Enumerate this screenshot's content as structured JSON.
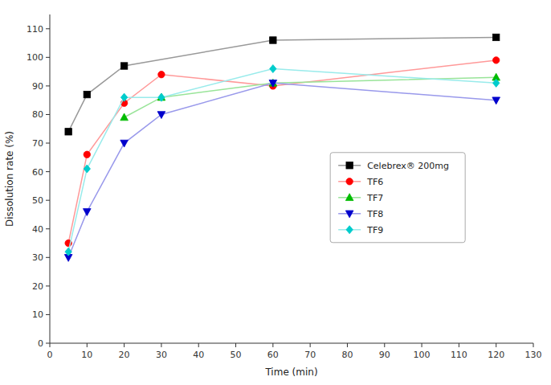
{
  "chart_data": {
    "type": "line",
    "xlabel": "Time (min)",
    "ylabel": "Dissolution rate (%)",
    "series": [
      {
        "name": "Celebrex® 200mg",
        "color": "#000000",
        "marker": "square",
        "x": [
          5,
          10,
          20,
          60,
          120
        ],
        "values": [
          74,
          87,
          97,
          106,
          107
        ]
      },
      {
        "name": "TF6",
        "color": "#ff0000",
        "marker": "circle",
        "x": [
          5,
          10,
          20,
          30,
          60,
          120
        ],
        "values": [
          35,
          66,
          84,
          94,
          90,
          99
        ]
      },
      {
        "name": "TF7",
        "color": "#00bb00",
        "marker": "triangle-up",
        "x": [
          20,
          30,
          60,
          120
        ],
        "values": [
          79,
          86,
          91,
          93
        ]
      },
      {
        "name": "TF8",
        "color": "#0000cc",
        "marker": "triangle-down",
        "x": [
          5,
          10,
          20,
          30,
          60,
          120
        ],
        "values": [
          30,
          46,
          70,
          80,
          91,
          85
        ]
      },
      {
        "name": "TF9",
        "color": "#00cccc",
        "marker": "diamond",
        "x": [
          5,
          10,
          20,
          30,
          60,
          120
        ],
        "values": [
          32,
          61,
          86,
          86,
          96,
          91
        ]
      }
    ],
    "xlim": [
      0,
      130
    ],
    "ylim": [
      0,
      115
    ],
    "xticks": [
      0,
      10,
      20,
      30,
      40,
      50,
      60,
      70,
      80,
      90,
      100,
      110,
      120,
      130
    ],
    "yticks": [
      0,
      10,
      20,
      30,
      40,
      50,
      60,
      70,
      80,
      90,
      100,
      110
    ],
    "grid": false,
    "legend": "center right"
  }
}
